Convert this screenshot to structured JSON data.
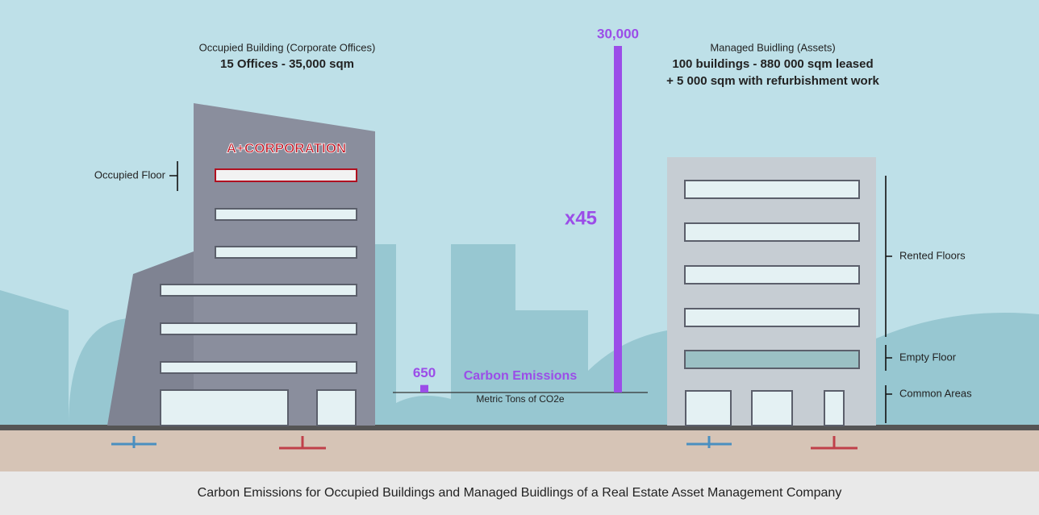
{
  "chart_data": {
    "type": "bar",
    "title": "Carbon Emissions",
    "y_label": "Metric Tons of CO2e",
    "values": [
      650,
      30000
    ],
    "value_labels": [
      "650",
      "30,000"
    ],
    "color": "#9b4de8",
    "annotation": "x45"
  },
  "occupied_building": {
    "title": "Occupied Building (Corporate Offices)",
    "subtitle": "15 Offices - 35,000 sqm",
    "logo": "A+CORPORATION",
    "floor_label": "Occupied Floor"
  },
  "managed_building": {
    "title": "Managed Buidling (Assets)",
    "line1": "100 buildings - 880 000 sqm leased",
    "line2": "+ 5 000 sqm with refurbishment work",
    "labels": [
      "Rented Floors",
      "Empty Floor",
      "Common Areas"
    ]
  },
  "caption": "Carbon Emissions for Occupied Buildings and Managed Buidlings of a Real Estate Asset Management Company"
}
